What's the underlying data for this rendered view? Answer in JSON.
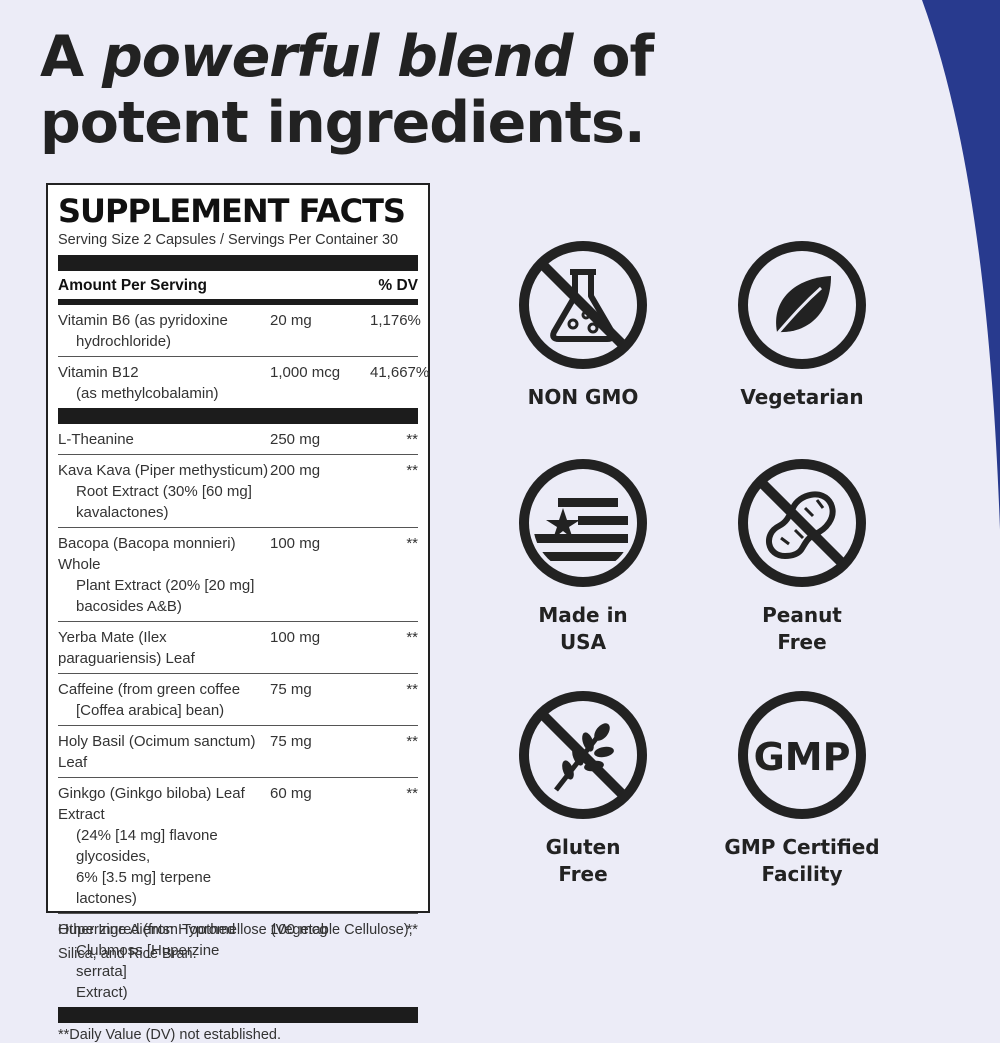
{
  "headline": {
    "line1_pre": "A ",
    "line1_em": "powerful blend",
    "line1_post": " of",
    "line2": "potent ingredients."
  },
  "colors": {
    "background": "#ececf7",
    "accent_wave": "#283a8e",
    "ink": "#222222"
  },
  "facts": {
    "title": "SUPPLEMENT FACTS",
    "serving": "Serving Size 2 Capsules / Servings Per Container 30",
    "header_amount": "Amount Per Serving",
    "header_dv": "% DV",
    "group1": [
      {
        "name_a": "Vitamin B6 (as pyridoxine",
        "name_b": "hydrochloride)",
        "amount": "20 mg",
        "dv": "1,176%"
      },
      {
        "name_a": "Vitamin B12",
        "name_b": "(as methylcobalamin)",
        "amount": "1,000 mcg",
        "dv": "41,667%"
      }
    ],
    "group2": [
      {
        "lines": [
          "L-Theanine"
        ],
        "amount": "250 mg",
        "dv": "**"
      },
      {
        "lines": [
          "Kava Kava (Piper methysticum)",
          "Root Extract (30% [60 mg]",
          "kavalactones)"
        ],
        "amount": "200 mg",
        "dv": "**"
      },
      {
        "lines": [
          "Bacopa (Bacopa monnieri) Whole",
          "Plant Extract (20% [20 mg]",
          "bacosides A&B)"
        ],
        "amount": "100 mg",
        "dv": "**"
      },
      {
        "lines": [
          "Yerba Mate (Ilex paraguariensis) Leaf"
        ],
        "amount": "100 mg",
        "dv": "**"
      },
      {
        "lines": [
          "Caffeine (from green coffee",
          "[Coffea arabica] bean)"
        ],
        "amount": "75 mg",
        "dv": "**"
      },
      {
        "lines": [
          "Holy Basil (Ocimum sanctum) Leaf"
        ],
        "amount": "75 mg",
        "dv": "**"
      },
      {
        "lines": [
          "Ginkgo (Ginkgo biloba) Leaf Extract",
          "(24% [14 mg] flavone glycosides,",
          "6% [3.5 mg] terpene lactones)"
        ],
        "amount": "60 mg",
        "dv": "**"
      },
      {
        "lines": [
          "Huperzine A (from Toothed",
          "Clubmoss [Huperzine serrata]",
          "Extract)"
        ],
        "amount": "100 mcg",
        "dv": "**"
      }
    ],
    "footnote": "**Daily Value (DV) not established."
  },
  "other_ingredients": {
    "line1": "Other Ingredients: Hypromellose (Vegetable Cellulose),",
    "line2": "Silica, and Rice Bran."
  },
  "badges": [
    {
      "icon": "no-gmo-flask-icon",
      "label": "NON GMO"
    },
    {
      "icon": "leaf-icon",
      "label": "Vegetarian"
    },
    {
      "icon": "usa-flag-icon",
      "label": "Made in\nUSA"
    },
    {
      "icon": "no-peanut-icon",
      "label": "Peanut\nFree"
    },
    {
      "icon": "no-gluten-wheat-icon",
      "label": "Gluten\nFree"
    },
    {
      "icon": "gmp-icon",
      "label": "GMP Certified\nFacility",
      "icon_text": "GMP"
    }
  ]
}
